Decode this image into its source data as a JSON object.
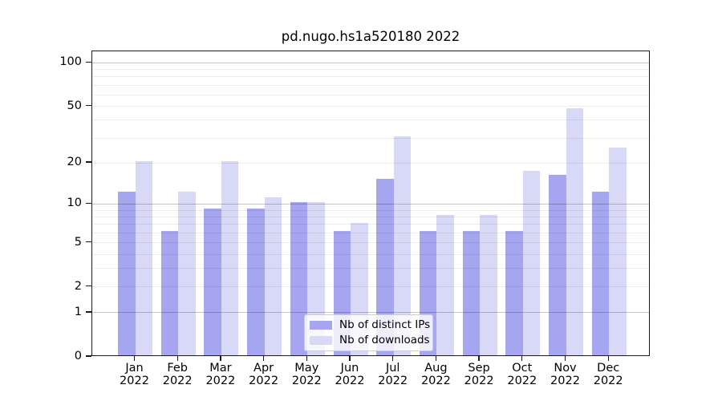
{
  "title": "pd.nugo.hs1a520180 2022",
  "colors": {
    "ips": "#a5a5f0",
    "downloads": "#d8d8f7",
    "axis": "#1a1a1a"
  },
  "legend": {
    "items": [
      {
        "label": "Nb of distinct IPs",
        "color_key": "ips"
      },
      {
        "label": "Nb of downloads",
        "color_key": "downloads"
      }
    ]
  },
  "axes": {
    "y_tick_labels": [
      "100",
      "50",
      "20",
      "10",
      "5",
      "2",
      "1",
      "0"
    ],
    "y_tick_values": [
      100,
      50,
      20,
      10,
      5,
      2,
      1,
      0
    ],
    "grid_minor_values": [
      2,
      3,
      4,
      5,
      6,
      7,
      8,
      9,
      20,
      30,
      40,
      50,
      60,
      70,
      80,
      90
    ],
    "grid_major_values": [
      1,
      10,
      100
    ]
  },
  "chart_data": {
    "type": "bar",
    "title": "pd.nugo.hs1a520180 2022",
    "categories": [
      "Jan",
      "Feb",
      "Mar",
      "Apr",
      "May",
      "Jun",
      "Jul",
      "Aug",
      "Sep",
      "Oct",
      "Nov",
      "Dec"
    ],
    "year": "2022",
    "series": [
      {
        "name": "Nb of distinct IPs",
        "values": [
          12,
          6,
          9,
          9,
          10,
          6,
          15,
          6,
          6,
          6,
          16,
          12
        ]
      },
      {
        "name": "Nb of downloads",
        "values": [
          20,
          12,
          20,
          11,
          10,
          7,
          30,
          8,
          8,
          17,
          47,
          25
        ]
      }
    ],
    "scale": "log1p",
    "ylim": [
      0,
      123
    ],
    "grid": true,
    "legend_position": "lower center",
    "xlabel": "",
    "ylabel": ""
  }
}
